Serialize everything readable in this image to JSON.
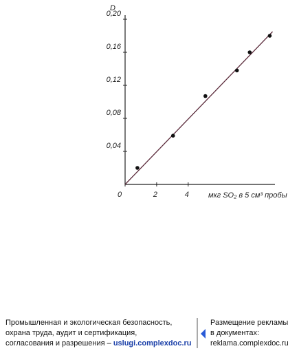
{
  "chart_data": {
    "type": "scatter",
    "y_label": "D",
    "x_label": "мкг SO₂ в 5 см³ пробы",
    "xlim": [
      0,
      9.5
    ],
    "ylim": [
      0,
      0.2
    ],
    "xticks": [
      0,
      2,
      4
    ],
    "yticks": [
      {
        "value": 0.04,
        "label": "0,04"
      },
      {
        "value": 0.08,
        "label": "0,08"
      },
      {
        "value": 0.12,
        "label": "0,12"
      },
      {
        "value": 0.16,
        "label": "0,16"
      },
      {
        "value": 0.2,
        "label": "0,20"
      }
    ],
    "color": "#111111",
    "x": [
      0.78,
      3.04,
      5.09,
      7.09,
      7.9,
      9.17
    ],
    "values": [
      0.02,
      0.059,
      0.107,
      0.138,
      0.16,
      0.18
    ],
    "fit_line": {
      "color": "#5a2a3a",
      "x": [
        0,
        9.35
      ],
      "values": [
        0,
        0.185
      ]
    }
  },
  "footer": {
    "left_lines": [
      "Промышленная и экологическая безопасность,",
      "охрана труда, аудит и сертификация,",
      "согласования и разрешения – "
    ],
    "left_link": "uslugi.complexdoc.ru",
    "right_lines": [
      "Размещение рекламы",
      "в документах:"
    ],
    "right_link": "reklama.complexdoc.ru"
  }
}
